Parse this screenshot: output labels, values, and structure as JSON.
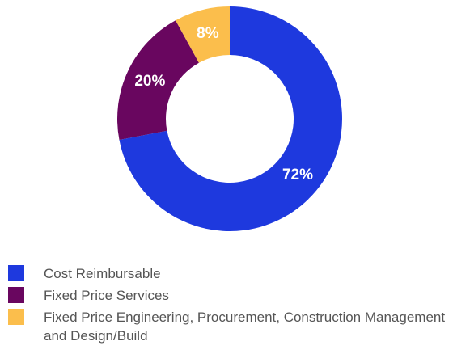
{
  "chart_data": {
    "type": "pie",
    "donut": true,
    "categories": [
      "Cost Reimbursable",
      "Fixed Price Services",
      "Fixed Price Engineering, Procurement, Construction Management and Design/Build"
    ],
    "values": [
      72,
      20,
      8
    ],
    "data_labels": [
      "72%",
      "20%",
      "8%"
    ],
    "colors": [
      "#1e39de",
      "#69065f",
      "#fbbe4c"
    ],
    "legend_placement": "bottom",
    "title": ""
  }
}
